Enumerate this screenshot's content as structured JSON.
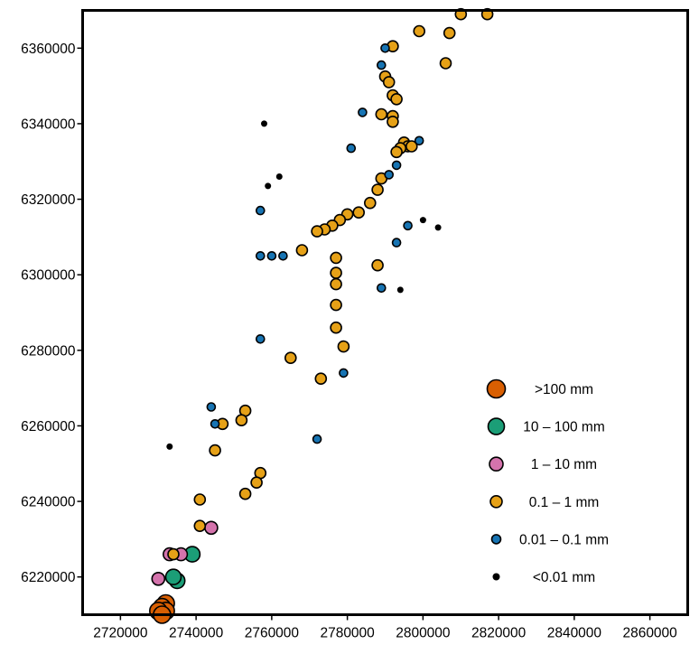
{
  "chart_data": {
    "type": "scatter",
    "xlim": [
      2710000,
      2870000
    ],
    "ylim": [
      6210000,
      6370000
    ],
    "x_ticks": [
      "2720000",
      "2740000",
      "2760000",
      "2780000",
      "2800000",
      "2820000",
      "2840000",
      "2860000"
    ],
    "y_ticks": [
      "6220000",
      "6240000",
      "6260000",
      "6280000",
      "6300000",
      "6320000",
      "6340000",
      "6360000"
    ],
    "grid": false,
    "legend_position": "bottom-right",
    "classes": [
      {
        "key": "c6",
        "label": ">100 mm",
        "color": "#d95f02"
      },
      {
        "key": "c5",
        "label": "10 – 100 mm",
        "color": "#1b9e77"
      },
      {
        "key": "c4",
        "label": "1 – 10 mm",
        "color": "#d473ac"
      },
      {
        "key": "c3",
        "label": "0.1 – 1 mm",
        "color": "#e6a117"
      },
      {
        "key": "c2",
        "label": "0.01 – 0.1 mm",
        "color": "#1774b3"
      },
      {
        "key": "c1",
        "label": "<0.01 mm",
        "color": "#000000"
      }
    ],
    "series": [
      {
        "class": "c6",
        "points": [
          [
            2732000,
            6213000
          ],
          [
            2731000,
            6212000
          ],
          [
            2732000,
            6211000
          ],
          [
            2730000,
            6211000
          ],
          [
            2731000,
            6210000
          ]
        ]
      },
      {
        "class": "c5",
        "points": [
          [
            2739000,
            6226000
          ],
          [
            2735000,
            6219000
          ],
          [
            2734000,
            6220000
          ]
        ]
      },
      {
        "class": "c4",
        "points": [
          [
            2733000,
            6226000
          ],
          [
            2736000,
            6226000
          ],
          [
            2744000,
            6233000
          ],
          [
            2730000,
            6219500
          ]
        ]
      },
      {
        "class": "c3",
        "points": [
          [
            2810000,
            6369000
          ],
          [
            2817000,
            6369000
          ],
          [
            2799000,
            6364500
          ],
          [
            2807000,
            6364000
          ],
          [
            2792000,
            6360500
          ],
          [
            2806000,
            6356000
          ],
          [
            2790000,
            6352500
          ],
          [
            2791000,
            6351000
          ],
          [
            2792000,
            6347500
          ],
          [
            2793000,
            6346500
          ],
          [
            2789000,
            6342500
          ],
          [
            2792000,
            6342000
          ],
          [
            2792000,
            6340500
          ],
          [
            2795000,
            6335000
          ],
          [
            2796000,
            6334000
          ],
          [
            2794000,
            6333500
          ],
          [
            2797000,
            6334000
          ],
          [
            2793000,
            6332500
          ],
          [
            2789000,
            6325500
          ],
          [
            2788000,
            6322500
          ],
          [
            2786000,
            6319000
          ],
          [
            2783000,
            6316500
          ],
          [
            2780000,
            6316000
          ],
          [
            2778000,
            6314500
          ],
          [
            2776000,
            6313000
          ],
          [
            2774000,
            6312000
          ],
          [
            2772000,
            6311500
          ],
          [
            2768000,
            6306500
          ],
          [
            2777000,
            6304500
          ],
          [
            2777000,
            6300500
          ],
          [
            2777000,
            6297500
          ],
          [
            2788000,
            6302500
          ],
          [
            2777000,
            6292000
          ],
          [
            2777000,
            6286000
          ],
          [
            2779000,
            6281000
          ],
          [
            2765000,
            6278000
          ],
          [
            2773000,
            6272500
          ],
          [
            2753000,
            6264000
          ],
          [
            2752000,
            6261500
          ],
          [
            2747000,
            6260500
          ],
          [
            2745000,
            6253500
          ],
          [
            2757000,
            6247500
          ],
          [
            2756000,
            6245000
          ],
          [
            2753000,
            6242000
          ],
          [
            2741000,
            6240500
          ],
          [
            2741000,
            6233500
          ],
          [
            2734000,
            6226000
          ]
        ]
      },
      {
        "class": "c2",
        "points": [
          [
            2790000,
            6360000
          ],
          [
            2789000,
            6355500
          ],
          [
            2784000,
            6343000
          ],
          [
            2799000,
            6335500
          ],
          [
            2781000,
            6333500
          ],
          [
            2793000,
            6329000
          ],
          [
            2791000,
            6326500
          ],
          [
            2757000,
            6317000
          ],
          [
            2796000,
            6313000
          ],
          [
            2793000,
            6308500
          ],
          [
            2757000,
            6305000
          ],
          [
            2760000,
            6305000
          ],
          [
            2763000,
            6305000
          ],
          [
            2789000,
            6296500
          ],
          [
            2757000,
            6283000
          ],
          [
            2779000,
            6274000
          ],
          [
            2744000,
            6265000
          ],
          [
            2745000,
            6260500
          ],
          [
            2772000,
            6256500
          ]
        ]
      },
      {
        "class": "c1",
        "points": [
          [
            2758000,
            6340000
          ],
          [
            2762000,
            6326000
          ],
          [
            2759000,
            6323500
          ],
          [
            2800000,
            6314500
          ],
          [
            2804000,
            6312500
          ],
          [
            2794000,
            6296000
          ],
          [
            2733000,
            6254500
          ]
        ]
      }
    ]
  }
}
